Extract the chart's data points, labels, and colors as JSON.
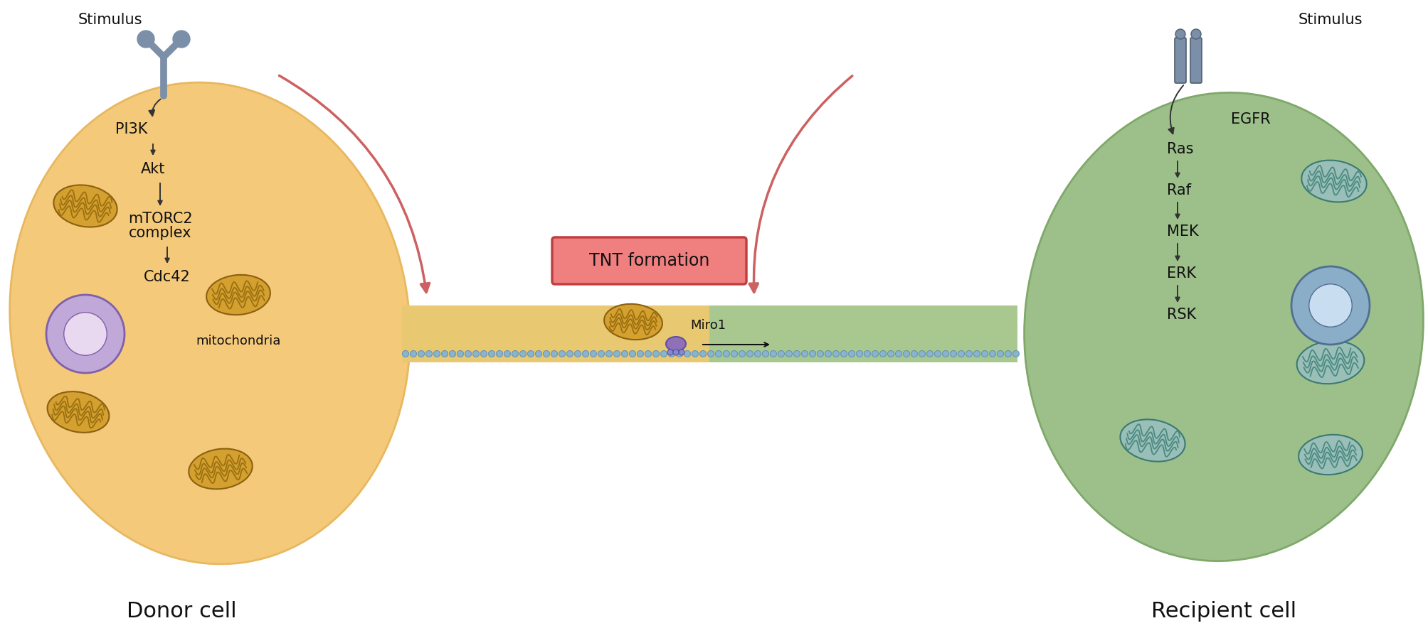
{
  "bg_color": "#ffffff",
  "donor_cell_color": "#F5C97A",
  "donor_cell_edge": "#E8B860",
  "recipient_cell_color": "#9DC08B",
  "recipient_cell_edge": "#7FA86A",
  "tnt_label": "TNT formation",
  "tnt_box_fill": "#F08080",
  "tnt_box_edge": "#C04040",
  "donor_label": "Donor cell",
  "recipient_label": "Recipient cell",
  "donor_pathway": [
    "PI3K",
    "Akt",
    "mTORC2\ncomplex",
    "Cdc42"
  ],
  "recipient_pathway": [
    "EGFR",
    "Ras",
    "Raf",
    "MEK",
    "ERK",
    "RSK"
  ],
  "stimulus_label": "Stimulus",
  "miro1_label": "Miro1",
  "red_arrow_color": "#CD6060",
  "pathway_arrow_color": "#555555",
  "receptor_color": "#7B8FA8",
  "mito_donor_body": "#D4A030",
  "mito_donor_inner": "#9B7010",
  "mito_recip_body": "#9ABFB8",
  "mito_recip_inner": "#4A8A80",
  "nucleus_donor_color": "#C0A8D8",
  "nucleus_recip_color": "#8AAEC8",
  "filament_color": "#88B4D0",
  "filament_edge": "#6090B0",
  "tube_donor_color": "#E8C870",
  "tube_recip_color": "#A8C890",
  "miro1_color": "#9070B8"
}
